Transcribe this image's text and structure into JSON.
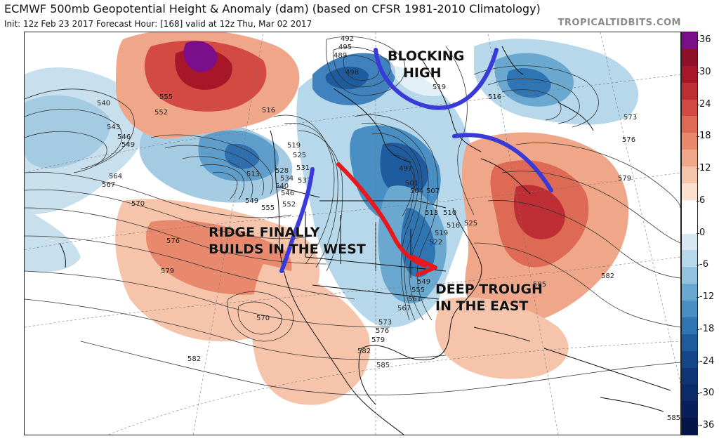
{
  "header": {
    "title": "ECMWF 500mb Geopotential Height & Anomaly (dam) (based on CFSR 1981-2010 Climatology)",
    "subtitle": "Init: 12z Feb 23 2017   Forecast Hour: [168]   valid at 12z Thu, Mar 02 2017",
    "site": "TROPICALTIDBITS.COM"
  },
  "annotations": {
    "blocking_line1": "BLOCKING",
    "blocking_line2": "HIGH",
    "ridge_line1": "RIDGE FINALLY",
    "ridge_line2": "BUILDS IN THE WEST",
    "trough_line1": "DEEP TROUGH",
    "trough_line2": "IN THE EAST"
  },
  "colors": {
    "annotation_blue": "#3a3ad8",
    "annotation_red": "#e8191c",
    "strong_positive": "#7b0e8a"
  },
  "colorbar": {
    "ticks": [
      "36",
      "30",
      "24",
      "18",
      "12",
      "6",
      "0",
      "-6",
      "-12",
      "-18",
      "-24",
      "-30",
      "-36"
    ],
    "segments": [
      {
        "color": "#7b0e8a"
      },
      {
        "color": "#8f1028"
      },
      {
        "color": "#a8162a"
      },
      {
        "color": "#bf2e35"
      },
      {
        "color": "#d24a42"
      },
      {
        "color": "#de6a55"
      },
      {
        "color": "#e8886c"
      },
      {
        "color": "#f0a688"
      },
      {
        "color": "#f6c4ab"
      },
      {
        "color": "#fbdfcf"
      },
      {
        "color": "#ffffff"
      },
      {
        "color": "#ffffff"
      },
      {
        "color": "#d6e9f3"
      },
      {
        "color": "#b6d8ea"
      },
      {
        "color": "#93c3de"
      },
      {
        "color": "#6aa8d0"
      },
      {
        "color": "#4a8fc3"
      },
      {
        "color": "#2f74b3"
      },
      {
        "color": "#1f5b9f"
      },
      {
        "color": "#16468a"
      },
      {
        "color": "#0f3577"
      },
      {
        "color": "#0b2a6a"
      },
      {
        "color": "#081f5c"
      },
      {
        "color": "#04154a"
      }
    ]
  },
  "contour_labels": [
    {
      "text": "540"
    },
    {
      "text": "543"
    },
    {
      "text": "546"
    },
    {
      "text": "549"
    },
    {
      "text": "555"
    },
    {
      "text": "552"
    },
    {
      "text": "564"
    },
    {
      "text": "567"
    },
    {
      "text": "570"
    },
    {
      "text": "576"
    },
    {
      "text": "579"
    },
    {
      "text": "582"
    },
    {
      "text": "516"
    },
    {
      "text": "513"
    },
    {
      "text": "519"
    },
    {
      "text": "525"
    },
    {
      "text": "528"
    },
    {
      "text": "531"
    },
    {
      "text": "534"
    },
    {
      "text": "537"
    },
    {
      "text": "540"
    },
    {
      "text": "546"
    },
    {
      "text": "549"
    },
    {
      "text": "552"
    },
    {
      "text": "555"
    },
    {
      "text": "570"
    },
    {
      "text": "492"
    },
    {
      "text": "489"
    },
    {
      "text": "495"
    },
    {
      "text": "498"
    },
    {
      "text": "519"
    },
    {
      "text": "516"
    },
    {
      "text": "573"
    },
    {
      "text": "576"
    },
    {
      "text": "579"
    },
    {
      "text": "497"
    },
    {
      "text": "501"
    },
    {
      "text": "504"
    },
    {
      "text": "507"
    },
    {
      "text": "513"
    },
    {
      "text": "510"
    },
    {
      "text": "516"
    },
    {
      "text": "519"
    },
    {
      "text": "522"
    },
    {
      "text": "525"
    },
    {
      "text": "549"
    },
    {
      "text": "555"
    },
    {
      "text": "561"
    },
    {
      "text": "567"
    },
    {
      "text": "573"
    },
    {
      "text": "576"
    },
    {
      "text": "579"
    },
    {
      "text": "582"
    },
    {
      "text": "585"
    },
    {
      "text": "582"
    },
    {
      "text": "585"
    },
    {
      "text": "585"
    }
  ]
}
